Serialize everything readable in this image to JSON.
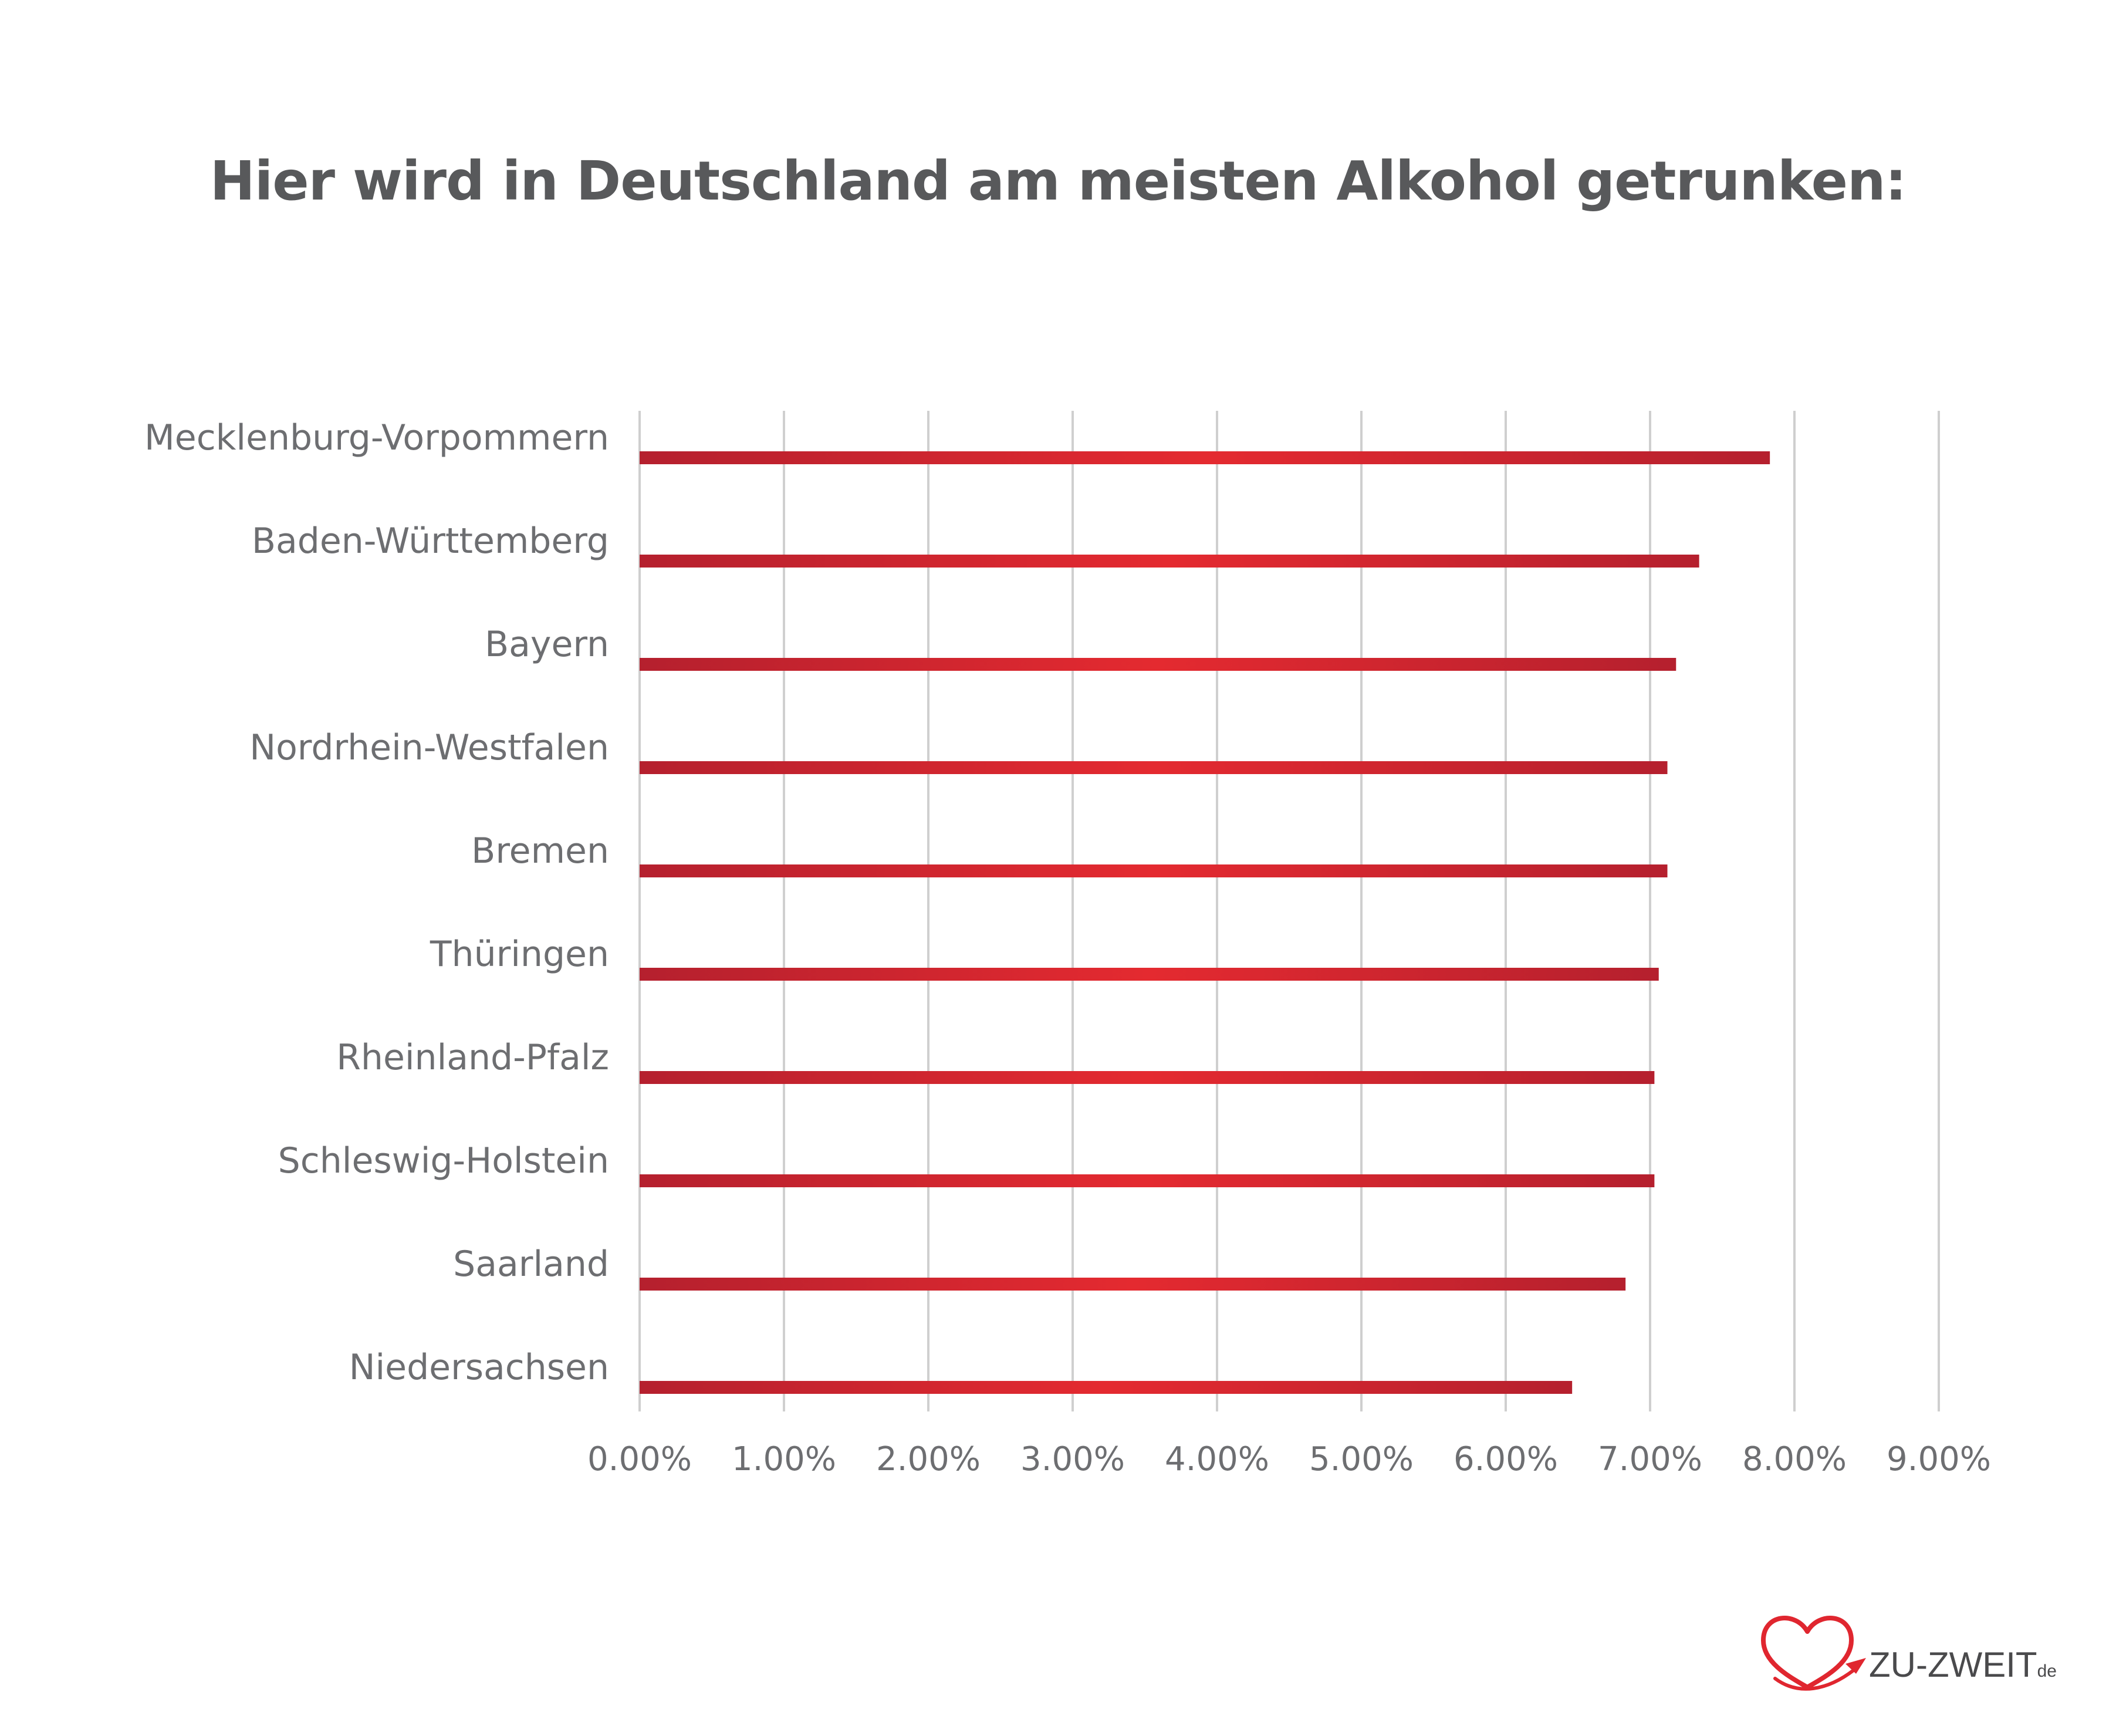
{
  "title": "Hier wird in Deutschland am meisten Alkohol getrunken:",
  "chart_data": {
    "type": "bar",
    "orientation": "horizontal",
    "title": "Hier wird in Deutschland am meisten Alkohol getrunken:",
    "xlabel": "",
    "ylabel": "",
    "categories": [
      "Mecklenburg-Vorpommern",
      "Baden-Württemberg",
      "Bayern",
      "Nordrhein-Westfalen",
      "Bremen",
      "Thüringen",
      "Rheinland-Pfalz",
      "Schleswig-Holstein",
      "Saarland",
      "Niedersachsen"
    ],
    "values": [
      7.83,
      7.34,
      7.18,
      7.12,
      7.12,
      7.06,
      7.03,
      7.03,
      6.83,
      6.46
    ],
    "xlim": [
      0,
      9
    ],
    "xticks": [
      "0.00%",
      "1.00%",
      "2.00%",
      "3.00%",
      "4.00%",
      "5.00%",
      "6.00%",
      "7.00%",
      "8.00%",
      "9.00%"
    ],
    "grid": true,
    "legend": "none",
    "colors": {
      "bar_edge": "#b5202e",
      "bar_center": "#e42a30",
      "grid": "#cfcfcf",
      "text": "#6d6e71"
    }
  },
  "logo": {
    "main": "ZU-ZWEIT",
    "suffix": "de",
    "color": "#e0262f"
  }
}
